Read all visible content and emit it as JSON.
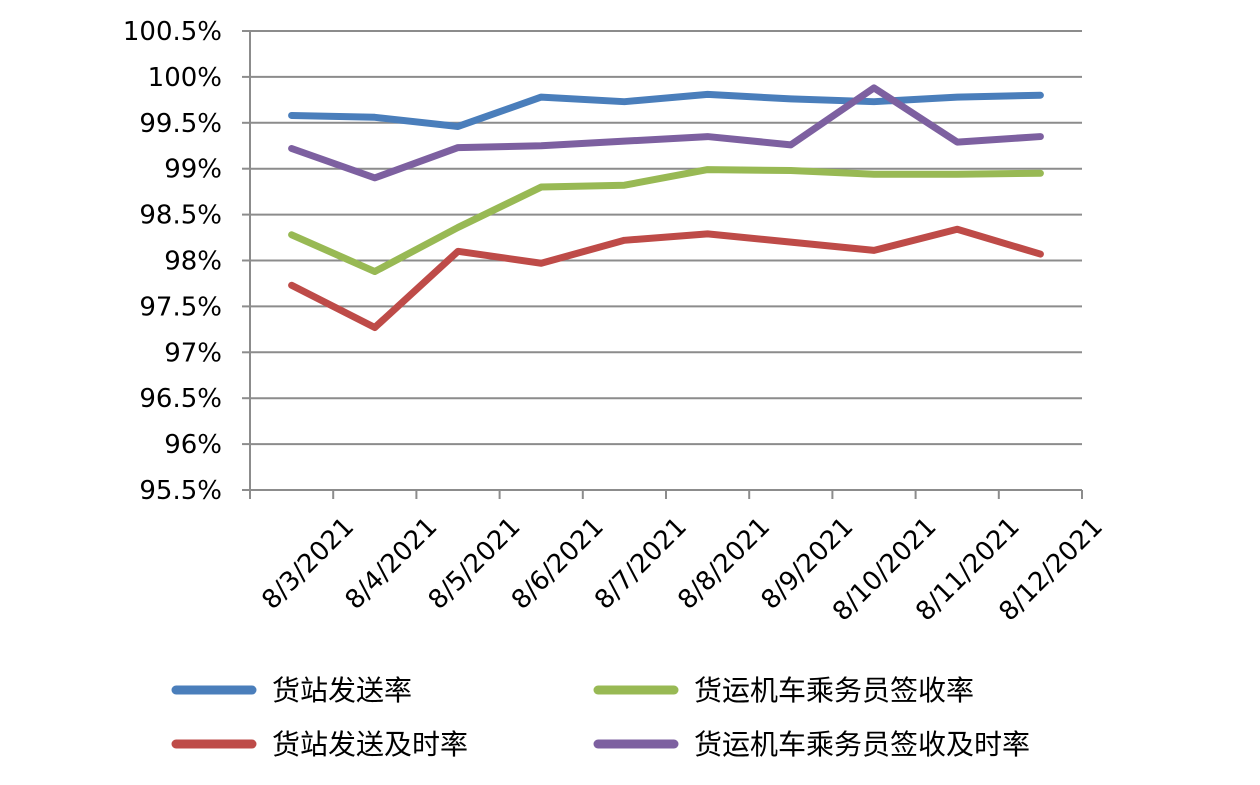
{
  "chart_data": {
    "type": "line",
    "categories": [
      "8/3/2021",
      "8/4/2021",
      "8/5/2021",
      "8/6/2021",
      "8/7/2021",
      "8/8/2021",
      "8/9/2021",
      "8/10/2021",
      "8/11/2021",
      "8/12/2021"
    ],
    "y_tick_labels": [
      "100.5%",
      "100%",
      "99.5%",
      "99%",
      "98.5%",
      "98%",
      "97.5%",
      "97%",
      "96.5%",
      "96%",
      "95.5%"
    ],
    "ylim": [
      95.5,
      100.5
    ],
    "grid": true,
    "legend_position": "bottom",
    "series": [
      {
        "name": "货站发送率",
        "color": "#4a7ebb",
        "values": [
          99.58,
          99.56,
          99.46,
          99.78,
          99.73,
          99.81,
          99.76,
          99.73,
          99.78,
          99.8
        ]
      },
      {
        "name": "货运机车乘务员签收率",
        "color": "#98b954",
        "values": [
          98.28,
          97.88,
          98.36,
          98.8,
          98.82,
          98.99,
          98.98,
          98.94,
          98.94,
          98.95
        ]
      },
      {
        "name": "货站发送及时率",
        "color": "#be4b48",
        "values": [
          97.73,
          97.27,
          98.1,
          97.97,
          98.22,
          98.29,
          98.2,
          98.11,
          98.34,
          98.07
        ]
      },
      {
        "name": "货运机车乘务员签收及时率",
        "color": "#7d60a0",
        "values": [
          99.22,
          98.9,
          99.23,
          99.25,
          99.3,
          99.35,
          99.26,
          99.88,
          99.29,
          99.35
        ]
      }
    ]
  }
}
